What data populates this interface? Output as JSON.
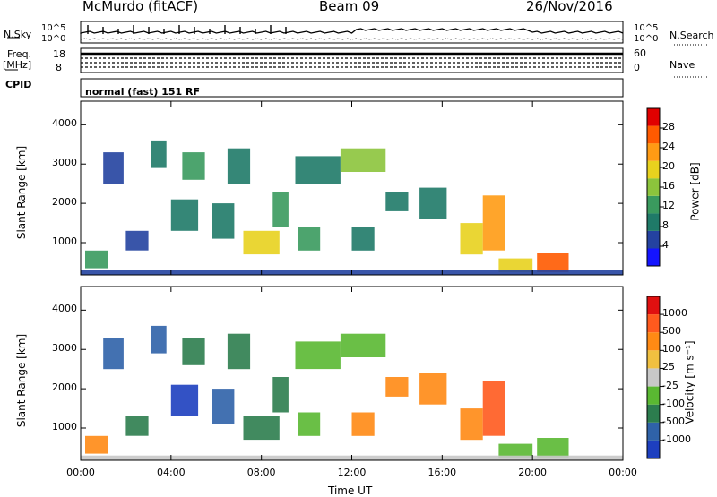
{
  "header": {
    "station": "McMurdo (fitACF)",
    "beam": "Beam 09",
    "date": "26/Nov/2016"
  },
  "info_panel": {
    "nsky_label": "N.Sky",
    "nsky_ticks": [
      "10^5",
      "10^0"
    ],
    "nsearch_label": "N.Search",
    "nsearch_ticks": [
      "10^5",
      "10^0"
    ],
    "freq_label": "Freq.",
    "freq_unit": "[MHz]",
    "freq_ticks": [
      "18",
      "8"
    ],
    "nave_label": "Nave",
    "nave_ticks": [
      "60",
      "0"
    ],
    "cpid_label": "CPID",
    "cpid_text": "normal (fast) 151 RF"
  },
  "chart_data": [
    {
      "type": "heatmap",
      "panel": "power",
      "ylabel": "Slant Range [km]",
      "ylim": [
        180,
        4600
      ],
      "xlim": [
        0,
        24
      ],
      "yticks": [
        1000,
        2000,
        3000,
        4000
      ],
      "colorbar_label": "Power [dB]",
      "colorbar_ticks": [
        4,
        8,
        12,
        16,
        20,
        24,
        28
      ],
      "colorbar_range": [
        0,
        32
      ],
      "colors": [
        "#1414ff",
        "#2442a0",
        "#1f7a68",
        "#3a9a5e",
        "#8cc43c",
        "#e8d21e",
        "#ff9b14",
        "#ff5a00",
        "#e00000"
      ],
      "echo_regions": [
        {
          "t0": 0.2,
          "t1": 1.2,
          "r0": 350,
          "r1": 800,
          "level": 3
        },
        {
          "t0": 1.0,
          "t1": 1.9,
          "r0": 2500,
          "r1": 3300,
          "level": 1
        },
        {
          "t0": 2.0,
          "t1": 3.0,
          "r0": 800,
          "r1": 1300,
          "level": 1
        },
        {
          "t0": 3.1,
          "t1": 3.8,
          "r0": 2900,
          "r1": 3600,
          "level": 2
        },
        {
          "t0": 4.0,
          "t1": 5.2,
          "r0": 1300,
          "r1": 2100,
          "level": 2
        },
        {
          "t0": 4.5,
          "t1": 5.5,
          "r0": 2600,
          "r1": 3300,
          "level": 3
        },
        {
          "t0": 5.8,
          "t1": 6.8,
          "r0": 1100,
          "r1": 2000,
          "level": 2
        },
        {
          "t0": 6.5,
          "t1": 7.5,
          "r0": 2500,
          "r1": 3400,
          "level": 2
        },
        {
          "t0": 7.2,
          "t1": 8.8,
          "r0": 700,
          "r1": 1300,
          "level": 5
        },
        {
          "t0": 8.5,
          "t1": 9.2,
          "r0": 1400,
          "r1": 2300,
          "level": 3
        },
        {
          "t0": 9.6,
          "t1": 10.6,
          "r0": 800,
          "r1": 1400,
          "level": 3
        },
        {
          "t0": 9.5,
          "t1": 11.5,
          "r0": 2500,
          "r1": 3200,
          "level": 2
        },
        {
          "t0": 11.5,
          "t1": 13.5,
          "r0": 2800,
          "r1": 3400,
          "level": 4
        },
        {
          "t0": 12.0,
          "t1": 13.0,
          "r0": 800,
          "r1": 1400,
          "level": 2
        },
        {
          "t0": 13.5,
          "t1": 14.5,
          "r0": 1800,
          "r1": 2300,
          "level": 2
        },
        {
          "t0": 15.0,
          "t1": 16.2,
          "r0": 1600,
          "r1": 2400,
          "level": 2
        },
        {
          "t0": 16.8,
          "t1": 17.8,
          "r0": 700,
          "r1": 1500,
          "level": 5
        },
        {
          "t0": 17.8,
          "t1": 18.8,
          "r0": 800,
          "r1": 2200,
          "level": 6
        },
        {
          "t0": 18.5,
          "t1": 20.0,
          "r0": 250,
          "r1": 600,
          "level": 5
        },
        {
          "t0": 20.2,
          "t1": 21.6,
          "r0": 250,
          "r1": 750,
          "level": 7
        },
        {
          "t0": 0.0,
          "t1": 24.0,
          "r0": 190,
          "r1": 300,
          "level": 1
        }
      ]
    },
    {
      "type": "heatmap",
      "panel": "velocity",
      "ylabel": "Slant Range [km]",
      "xlabel": "Time UT",
      "ylim": [
        180,
        4600
      ],
      "xlim": [
        0,
        24
      ],
      "yticks": [
        1000,
        2000,
        3000,
        4000
      ],
      "xtick_labels": [
        "00:00",
        "04:00",
        "08:00",
        "12:00",
        "16:00",
        "20:00",
        "00:00"
      ],
      "colorbar_label": "Velocity [m s⁻¹]",
      "colorbar_ticks": [
        "1000",
        "500",
        "100",
        "25",
        "-25",
        "-100",
        "-500",
        "-1000"
      ],
      "colors": [
        "#1d3fbf",
        "#2f62a8",
        "#2c7d4e",
        "#5ab832",
        "#c8c8c8",
        "#f0c040",
        "#ff8a14",
        "#ff5a1e",
        "#e01010"
      ],
      "echo_regions": [
        {
          "t0": 0.2,
          "t1": 1.2,
          "r0": 350,
          "r1": 800,
          "level": 6
        },
        {
          "t0": 1.0,
          "t1": 1.9,
          "r0": 2500,
          "r1": 3300,
          "level": 1
        },
        {
          "t0": 2.0,
          "t1": 3.0,
          "r0": 800,
          "r1": 1300,
          "level": 2
        },
        {
          "t0": 3.1,
          "t1": 3.8,
          "r0": 2900,
          "r1": 3600,
          "level": 1
        },
        {
          "t0": 4.0,
          "t1": 5.2,
          "r0": 1300,
          "r1": 2100,
          "level": 0
        },
        {
          "t0": 4.5,
          "t1": 5.5,
          "r0": 2600,
          "r1": 3300,
          "level": 2
        },
        {
          "t0": 5.8,
          "t1": 6.8,
          "r0": 1100,
          "r1": 2000,
          "level": 1
        },
        {
          "t0": 6.5,
          "t1": 7.5,
          "r0": 2500,
          "r1": 3400,
          "level": 2
        },
        {
          "t0": 7.2,
          "t1": 8.8,
          "r0": 700,
          "r1": 1300,
          "level": 2
        },
        {
          "t0": 8.5,
          "t1": 9.2,
          "r0": 1400,
          "r1": 2300,
          "level": 2
        },
        {
          "t0": 9.6,
          "t1": 10.6,
          "r0": 800,
          "r1": 1400,
          "level": 3
        },
        {
          "t0": 9.5,
          "t1": 11.5,
          "r0": 2500,
          "r1": 3200,
          "level": 3
        },
        {
          "t0": 11.5,
          "t1": 13.5,
          "r0": 2800,
          "r1": 3400,
          "level": 3
        },
        {
          "t0": 12.0,
          "t1": 13.0,
          "r0": 800,
          "r1": 1400,
          "level": 6
        },
        {
          "t0": 13.5,
          "t1": 14.5,
          "r0": 1800,
          "r1": 2300,
          "level": 6
        },
        {
          "t0": 15.0,
          "t1": 16.2,
          "r0": 1600,
          "r1": 2400,
          "level": 6
        },
        {
          "t0": 16.8,
          "t1": 17.8,
          "r0": 700,
          "r1": 1500,
          "level": 6
        },
        {
          "t0": 17.8,
          "t1": 18.8,
          "r0": 800,
          "r1": 2200,
          "level": 7
        },
        {
          "t0": 18.5,
          "t1": 20.0,
          "r0": 250,
          "r1": 600,
          "level": 3
        },
        {
          "t0": 20.2,
          "t1": 21.6,
          "r0": 250,
          "r1": 750,
          "level": 3
        },
        {
          "t0": 0.0,
          "t1": 24.0,
          "r0": 190,
          "r1": 300,
          "level": 4
        }
      ]
    }
  ]
}
